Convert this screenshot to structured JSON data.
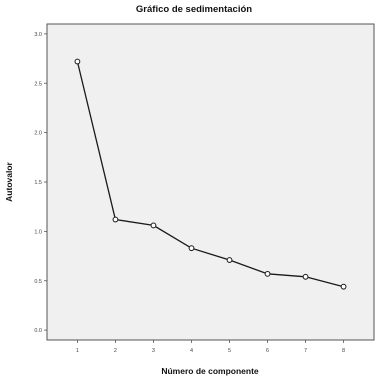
{
  "chart_data": {
    "type": "line",
    "title": "Gráfico de sedimentación",
    "xlabel": "Número de componente",
    "ylabel": "Autovalor",
    "x": [
      1,
      2,
      3,
      4,
      5,
      6,
      7,
      8
    ],
    "series": [
      {
        "values": [
          2.72,
          1.12,
          1.06,
          0.83,
          0.71,
          0.57,
          0.54,
          0.44
        ]
      }
    ],
    "xlim": [
      0.2,
      8.8
    ],
    "ylim": [
      -0.1,
      3.1
    ],
    "yticks": [
      "0.0",
      "0.5",
      "1.0",
      "1.5",
      "2.0",
      "2.5",
      "3.0"
    ],
    "xticks": [
      "1",
      "2",
      "3",
      "4",
      "5",
      "6",
      "7",
      "8"
    ],
    "grid": false,
    "colors": {
      "plot_bg": "#f0f0f0",
      "line": "#1a1a1a",
      "marker_fill": "#ffffff",
      "frame": "#555555"
    }
  }
}
